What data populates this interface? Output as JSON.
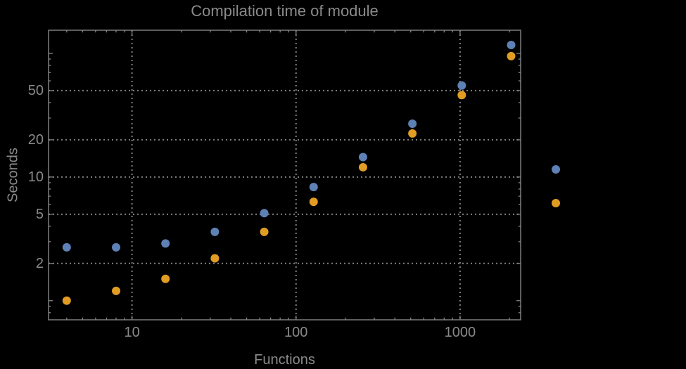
{
  "chart_data": {
    "type": "scatter",
    "title": "Compilation time of module",
    "x_axis": {
      "label": "Functions",
      "scale": "log",
      "range": [
        3.1,
        2340
      ],
      "tick_values": [
        10,
        100,
        1000
      ],
      "tick_labels": [
        "10",
        "100",
        "1000"
      ],
      "minor_ticks": [
        4,
        5,
        6,
        7,
        8,
        9,
        20,
        30,
        40,
        50,
        60,
        70,
        80,
        90,
        200,
        300,
        400,
        500,
        600,
        700,
        800,
        900,
        2000
      ]
    },
    "y_axis": {
      "label": "Seconds",
      "scale": "log",
      "range": [
        0.7,
        154
      ],
      "tick_values": [
        2,
        5,
        10,
        20,
        50
      ],
      "tick_labels": [
        "2",
        "5",
        "10",
        "20",
        "50"
      ],
      "unlabeled_decade_ticks": [
        1,
        100
      ],
      "minor_ticks": [
        0.8,
        0.9,
        3,
        4,
        6,
        7,
        8,
        9,
        30,
        40,
        60,
        70,
        80,
        90
      ]
    },
    "x": [
      4,
      8,
      16,
      32,
      64,
      128,
      256,
      512,
      1024,
      2048
    ],
    "series": [
      {
        "name": "blue",
        "color": "#5E81B5",
        "values": [
          2.7,
          2.7,
          2.9,
          3.6,
          5.1,
          8.3,
          14.5,
          27,
          55,
          117
        ]
      },
      {
        "name": "orange",
        "color": "#E19C24",
        "values": [
          1.0,
          1.2,
          1.5,
          2.2,
          3.6,
          6.3,
          12,
          22.5,
          46,
          95
        ]
      }
    ],
    "gridlines": {
      "x": [
        10,
        100,
        1000
      ],
      "y": [
        2,
        5,
        10,
        20,
        50
      ],
      "style": "dotted",
      "color": "#808080"
    },
    "legend": {
      "position": "right-outside",
      "markers": [
        {
          "name": "blue-series-marker",
          "color": "#5E81B5"
        },
        {
          "name": "orange-series-marker",
          "color": "#E19C24"
        }
      ]
    }
  },
  "colors": {
    "background": "#000000",
    "text": "#8a8a8a",
    "frame": "#868686"
  }
}
